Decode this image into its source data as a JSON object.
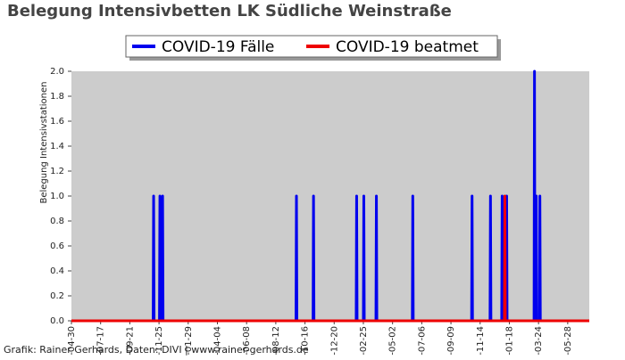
{
  "chart_data": {
    "type": "line",
    "title": "Belegung Intensivbetten LK Südliche Weinstraße",
    "y_label": "Belegung Intensivstationen",
    "source": "Grafik: Rainer Gerhards, Daten: DIVI | www.rainer-gerhards.de",
    "x": [
      0,
      182,
      183,
      184,
      196,
      197,
      198,
      202,
      203,
      204,
      500,
      501,
      502,
      538,
      539,
      540,
      634,
      635,
      636,
      650,
      651,
      652,
      678,
      679,
      680,
      759,
      760,
      761,
      891,
      892,
      893,
      932,
      933,
      934,
      958,
      959,
      960,
      964,
      965,
      966,
      968,
      969,
      970,
      1030,
      1031,
      1032,
      1034,
      1035,
      1036,
      1042,
      1043,
      1044,
      1153
    ],
    "series": [
      {
        "name": "COVID-19 Fälle",
        "color": "#0000ee",
        "values": [
          0,
          0,
          1,
          0,
          0,
          1,
          0,
          0,
          1,
          0,
          0,
          1,
          0,
          0,
          1,
          0,
          0,
          1,
          0,
          0,
          1,
          0,
          0,
          1,
          0,
          0,
          1,
          0,
          0,
          1,
          0,
          0,
          1,
          0,
          0,
          1,
          0,
          0,
          0,
          0,
          0,
          1,
          0,
          0,
          2,
          0,
          0,
          1,
          0,
          0,
          1,
          0,
          0
        ]
      },
      {
        "name": "COVID-19 beatmet",
        "color": "#ee0000",
        "values": [
          0,
          0,
          0,
          0,
          0,
          0,
          0,
          0,
          0,
          0,
          0,
          0,
          0,
          0,
          0,
          0,
          0,
          0,
          0,
          0,
          0,
          0,
          0,
          0,
          0,
          0,
          0,
          0,
          0,
          0,
          0,
          0,
          0,
          0,
          0,
          0,
          0,
          0,
          1,
          0,
          0,
          0,
          0,
          0,
          0,
          0,
          0,
          0,
          0,
          0,
          0,
          0,
          0
        ]
      }
    ],
    "xlim": [
      0,
      1153
    ],
    "xticks": [
      {
        "value": 0,
        "label": "-04-30"
      },
      {
        "value": 65,
        "label": "-07-17"
      },
      {
        "value": 130,
        "label": "-09-21"
      },
      {
        "value": 195,
        "label": "-11-25"
      },
      {
        "value": 260,
        "label": "-01-29"
      },
      {
        "value": 325,
        "label": "-04-04"
      },
      {
        "value": 390,
        "label": "-06-08"
      },
      {
        "value": 455,
        "label": "-08-12"
      },
      {
        "value": 520,
        "label": "-10-16"
      },
      {
        "value": 585,
        "label": "-12-20"
      },
      {
        "value": 650,
        "label": "-02-25"
      },
      {
        "value": 715,
        "label": "-05-02"
      },
      {
        "value": 780,
        "label": "-07-06"
      },
      {
        "value": 845,
        "label": "-09-09"
      },
      {
        "value": 910,
        "label": "-11-14"
      },
      {
        "value": 975,
        "label": "-01-18"
      },
      {
        "value": 1040,
        "label": "-03-24"
      },
      {
        "value": 1105,
        "label": "-05-28"
      }
    ],
    "ylim": [
      0,
      2
    ],
    "yticks": [
      {
        "value": 0,
        "label": "0.0"
      },
      {
        "value": 0.2,
        "label": "0.2"
      },
      {
        "value": 0.4,
        "label": "0.4"
      },
      {
        "value": 0.6,
        "label": "0.6"
      },
      {
        "value": 0.8,
        "label": "0.8"
      },
      {
        "value": 1,
        "label": "1.0"
      },
      {
        "value": 1.2,
        "label": "1.2"
      },
      {
        "value": 1.4,
        "label": "1.4"
      },
      {
        "value": 1.6,
        "label": "1.6"
      },
      {
        "value": 1.8,
        "label": "1.8"
      },
      {
        "value": 2,
        "label": "2.0"
      }
    ],
    "plot_background": "#cccccc"
  }
}
